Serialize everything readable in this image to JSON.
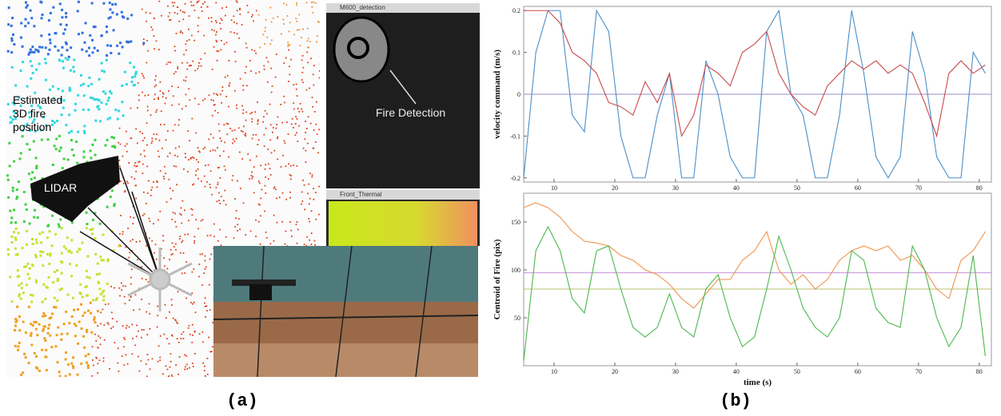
{
  "panel_a": {
    "label": "(a)",
    "annotations": {
      "fire_position": [
        "Estimated",
        "3D fire",
        "position"
      ],
      "lidar": "LIDAR",
      "fire_detection": "Fire Detection"
    },
    "windows": [
      {
        "title": "M600_detection"
      },
      {
        "title": "Front_Thermal"
      }
    ]
  },
  "panel_b": {
    "label": "(b)"
  },
  "chart_data": [
    {
      "type": "line",
      "ylabel": "velocity command (m/s)",
      "x": [
        5,
        7,
        9,
        11,
        13,
        15,
        17,
        19,
        21,
        23,
        25,
        27,
        29,
        31,
        33,
        35,
        37,
        39,
        41,
        43,
        45,
        47,
        49,
        51,
        53,
        55,
        57,
        59,
        61,
        63,
        65,
        67,
        69,
        71,
        73,
        75,
        77,
        79,
        81
      ],
      "series": [
        {
          "color": "#4a8ec8",
          "values": [
            -0.2,
            0.1,
            0.2,
            0.2,
            -0.05,
            -0.09,
            0.2,
            0.15,
            -0.1,
            -0.2,
            -0.2,
            -0.05,
            0.05,
            -0.2,
            -0.2,
            0.08,
            0.0,
            -0.15,
            -0.2,
            -0.2,
            0.15,
            0.2,
            0.0,
            -0.05,
            -0.2,
            -0.2,
            -0.05,
            0.2,
            0.05,
            -0.15,
            -0.2,
            -0.15,
            0.15,
            0.05,
            -0.15,
            -0.2,
            -0.2,
            0.1,
            0.05
          ]
        },
        {
          "color": "#c84a4a",
          "values": [
            0.2,
            0.2,
            0.2,
            0.17,
            0.1,
            0.08,
            0.05,
            -0.02,
            -0.03,
            -0.05,
            0.03,
            -0.02,
            0.05,
            -0.1,
            -0.05,
            0.07,
            0.05,
            0.02,
            0.1,
            0.12,
            0.15,
            0.05,
            0.0,
            -0.03,
            -0.05,
            0.02,
            0.05,
            0.08,
            0.06,
            0.08,
            0.05,
            0.07,
            0.05,
            -0.02,
            -0.1,
            0.05,
            0.08,
            0.05,
            0.07
          ]
        }
      ],
      "reference_lines": [
        {
          "value": 0,
          "color": "#9a8ac8"
        }
      ],
      "xlim": [
        5,
        82
      ],
      "xticks": [
        10,
        20,
        30,
        40,
        50,
        60,
        70,
        80
      ],
      "ylim": [
        -0.21,
        0.21
      ],
      "yticks": [
        -0.2,
        -0.1,
        0,
        0.1,
        0.2
      ]
    },
    {
      "type": "line",
      "ylabel": "Centroid of Fire (pix)",
      "xlabel": "time (s)",
      "x": [
        5,
        7,
        9,
        11,
        13,
        15,
        17,
        19,
        21,
        23,
        25,
        27,
        29,
        31,
        33,
        35,
        37,
        39,
        41,
        43,
        45,
        47,
        49,
        51,
        53,
        55,
        57,
        59,
        61,
        63,
        65,
        67,
        69,
        71,
        73,
        75,
        77,
        79,
        81
      ],
      "series": [
        {
          "color": "#f0924a",
          "values": [
            165,
            170,
            165,
            155,
            140,
            130,
            128,
            125,
            115,
            110,
            100,
            95,
            85,
            70,
            60,
            75,
            90,
            90,
            110,
            120,
            140,
            100,
            85,
            95,
            80,
            90,
            110,
            120,
            125,
            120,
            125,
            110,
            115,
            100,
            80,
            70,
            110,
            120,
            140
          ]
        },
        {
          "color": "#4cb84c",
          "values": [
            5,
            120,
            145,
            120,
            70,
            55,
            120,
            125,
            80,
            40,
            30,
            40,
            75,
            40,
            30,
            80,
            95,
            50,
            20,
            30,
            80,
            135,
            100,
            60,
            40,
            30,
            50,
            120,
            110,
            60,
            45,
            40,
            125,
            100,
            50,
            20,
            40,
            115,
            10
          ]
        }
      ],
      "reference_lines": [
        {
          "value": 97,
          "color": "#c890d8"
        },
        {
          "value": 80,
          "color": "#b8c070"
        }
      ],
      "xlim": [
        5,
        82
      ],
      "xticks": [
        10,
        20,
        30,
        40,
        50,
        60,
        70,
        80
      ],
      "ylim": [
        0,
        180
      ],
      "yticks": [
        50,
        100,
        150
      ]
    }
  ]
}
